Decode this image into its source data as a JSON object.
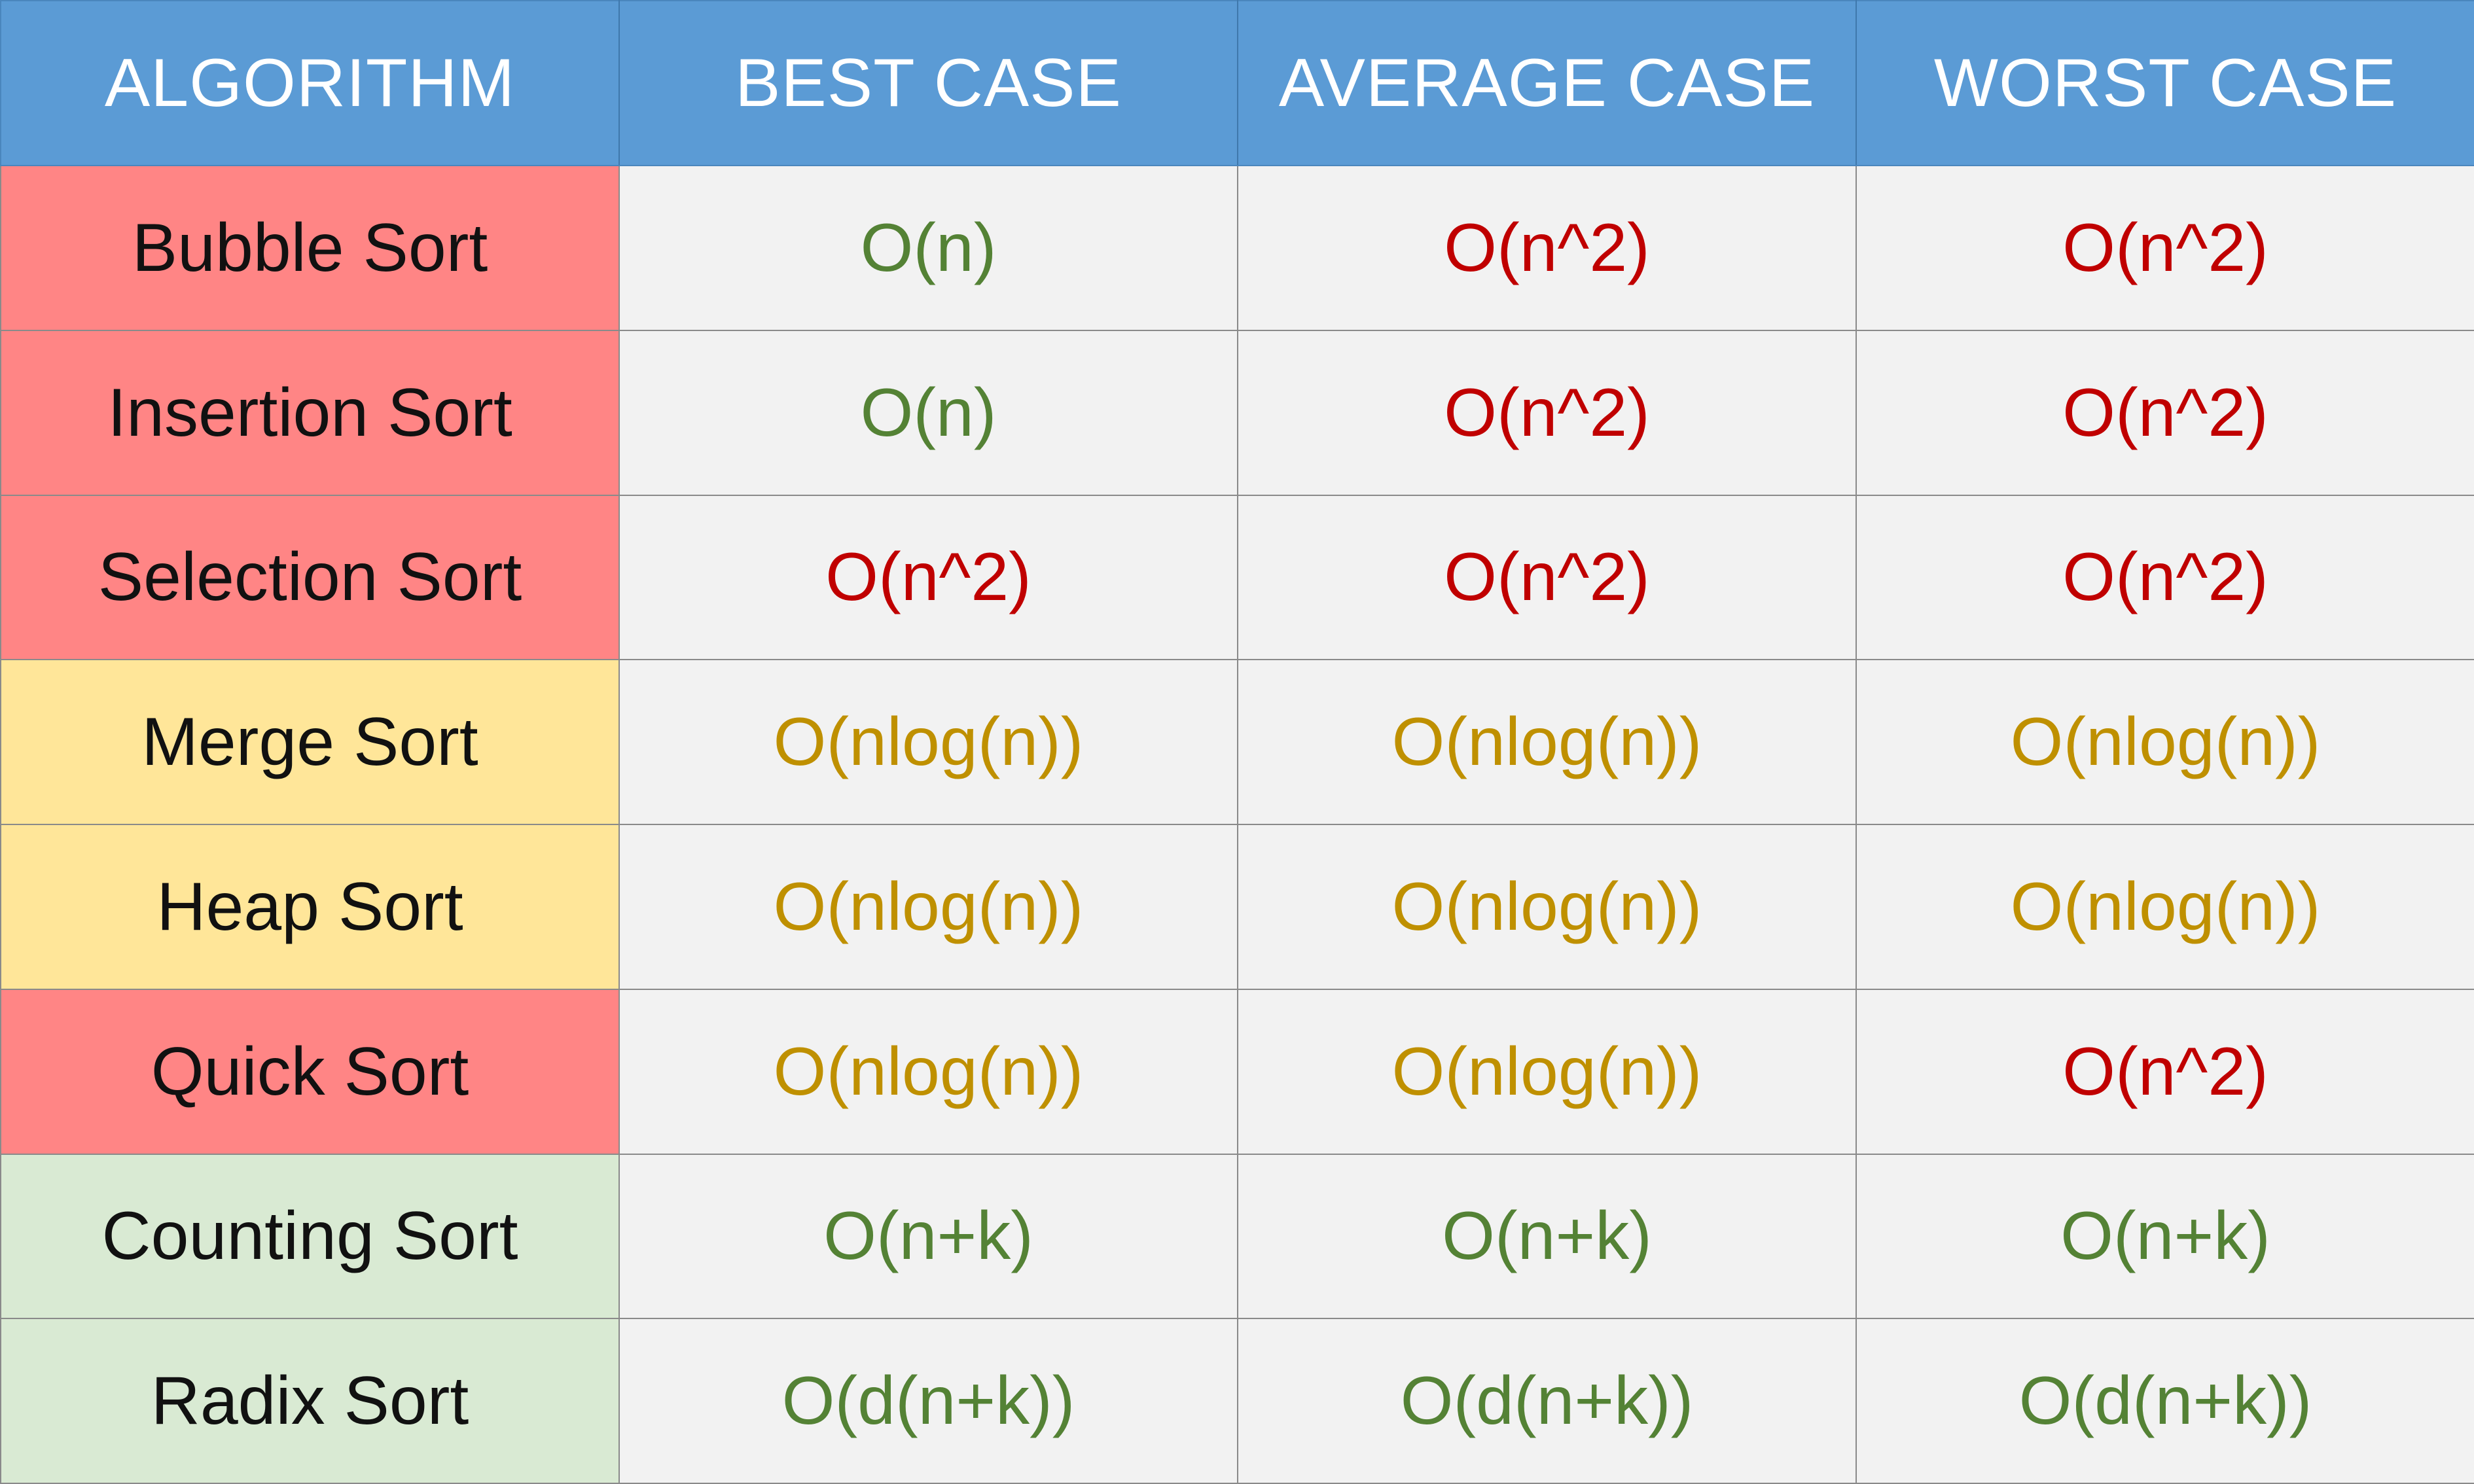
{
  "table": {
    "headers": [
      "ALGORITHM",
      "BEST CASE",
      "AVERAGE CASE",
      "WORST CASE"
    ],
    "rows": [
      {
        "algorithm": "Bubble Sort",
        "row_color": "red",
        "best": "O(n)",
        "best_color": "green",
        "average": "O(n^2)",
        "average_color": "red",
        "worst": "O(n^2)",
        "worst_color": "red"
      },
      {
        "algorithm": "Insertion Sort",
        "row_color": "red",
        "best": "O(n)",
        "best_color": "green",
        "average": "O(n^2)",
        "average_color": "red",
        "worst": "O(n^2)",
        "worst_color": "red"
      },
      {
        "algorithm": "Selection Sort",
        "row_color": "red",
        "best": "O(n^2)",
        "best_color": "red",
        "average": "O(n^2)",
        "average_color": "red",
        "worst": "O(n^2)",
        "worst_color": "red"
      },
      {
        "algorithm": "Merge Sort",
        "row_color": "yellow",
        "best": "O(nlog(n))",
        "best_color": "gold",
        "average": "O(nlog(n))",
        "average_color": "gold",
        "worst": "O(nlog(n))",
        "worst_color": "gold"
      },
      {
        "algorithm": "Heap Sort",
        "row_color": "yellow",
        "best": "O(nlog(n))",
        "best_color": "gold",
        "average": "O(nlog(n))",
        "average_color": "gold",
        "worst": "O(nlog(n))",
        "worst_color": "gold"
      },
      {
        "algorithm": "Quick Sort",
        "row_color": "red",
        "best": "O(nlog(n))",
        "best_color": "gold",
        "average": "O(nlog(n))",
        "average_color": "gold",
        "worst": "O(n^2)",
        "worst_color": "red"
      },
      {
        "algorithm": "Counting Sort",
        "row_color": "green",
        "best": "O(n+k)",
        "best_color": "green",
        "average": "O(n+k)",
        "average_color": "green",
        "worst": "O(n+k)",
        "worst_color": "green"
      },
      {
        "algorithm": "Radix Sort",
        "row_color": "green",
        "best": "O(d(n+k))",
        "best_color": "green",
        "average": "O(d(n+k))",
        "average_color": "green",
        "worst": "O(d(n+k))",
        "worst_color": "green"
      }
    ]
  },
  "colors": {
    "header_bg": "#5b9bd5",
    "header_text": "#ffffff",
    "algo_red_bg": "#ff8585",
    "algo_yellow_bg": "#ffe699",
    "algo_green_bg": "#d9ead3",
    "cell_bg": "#f2f2f2",
    "value_green": "#548235",
    "value_red": "#c00000",
    "value_gold": "#bf9000"
  }
}
